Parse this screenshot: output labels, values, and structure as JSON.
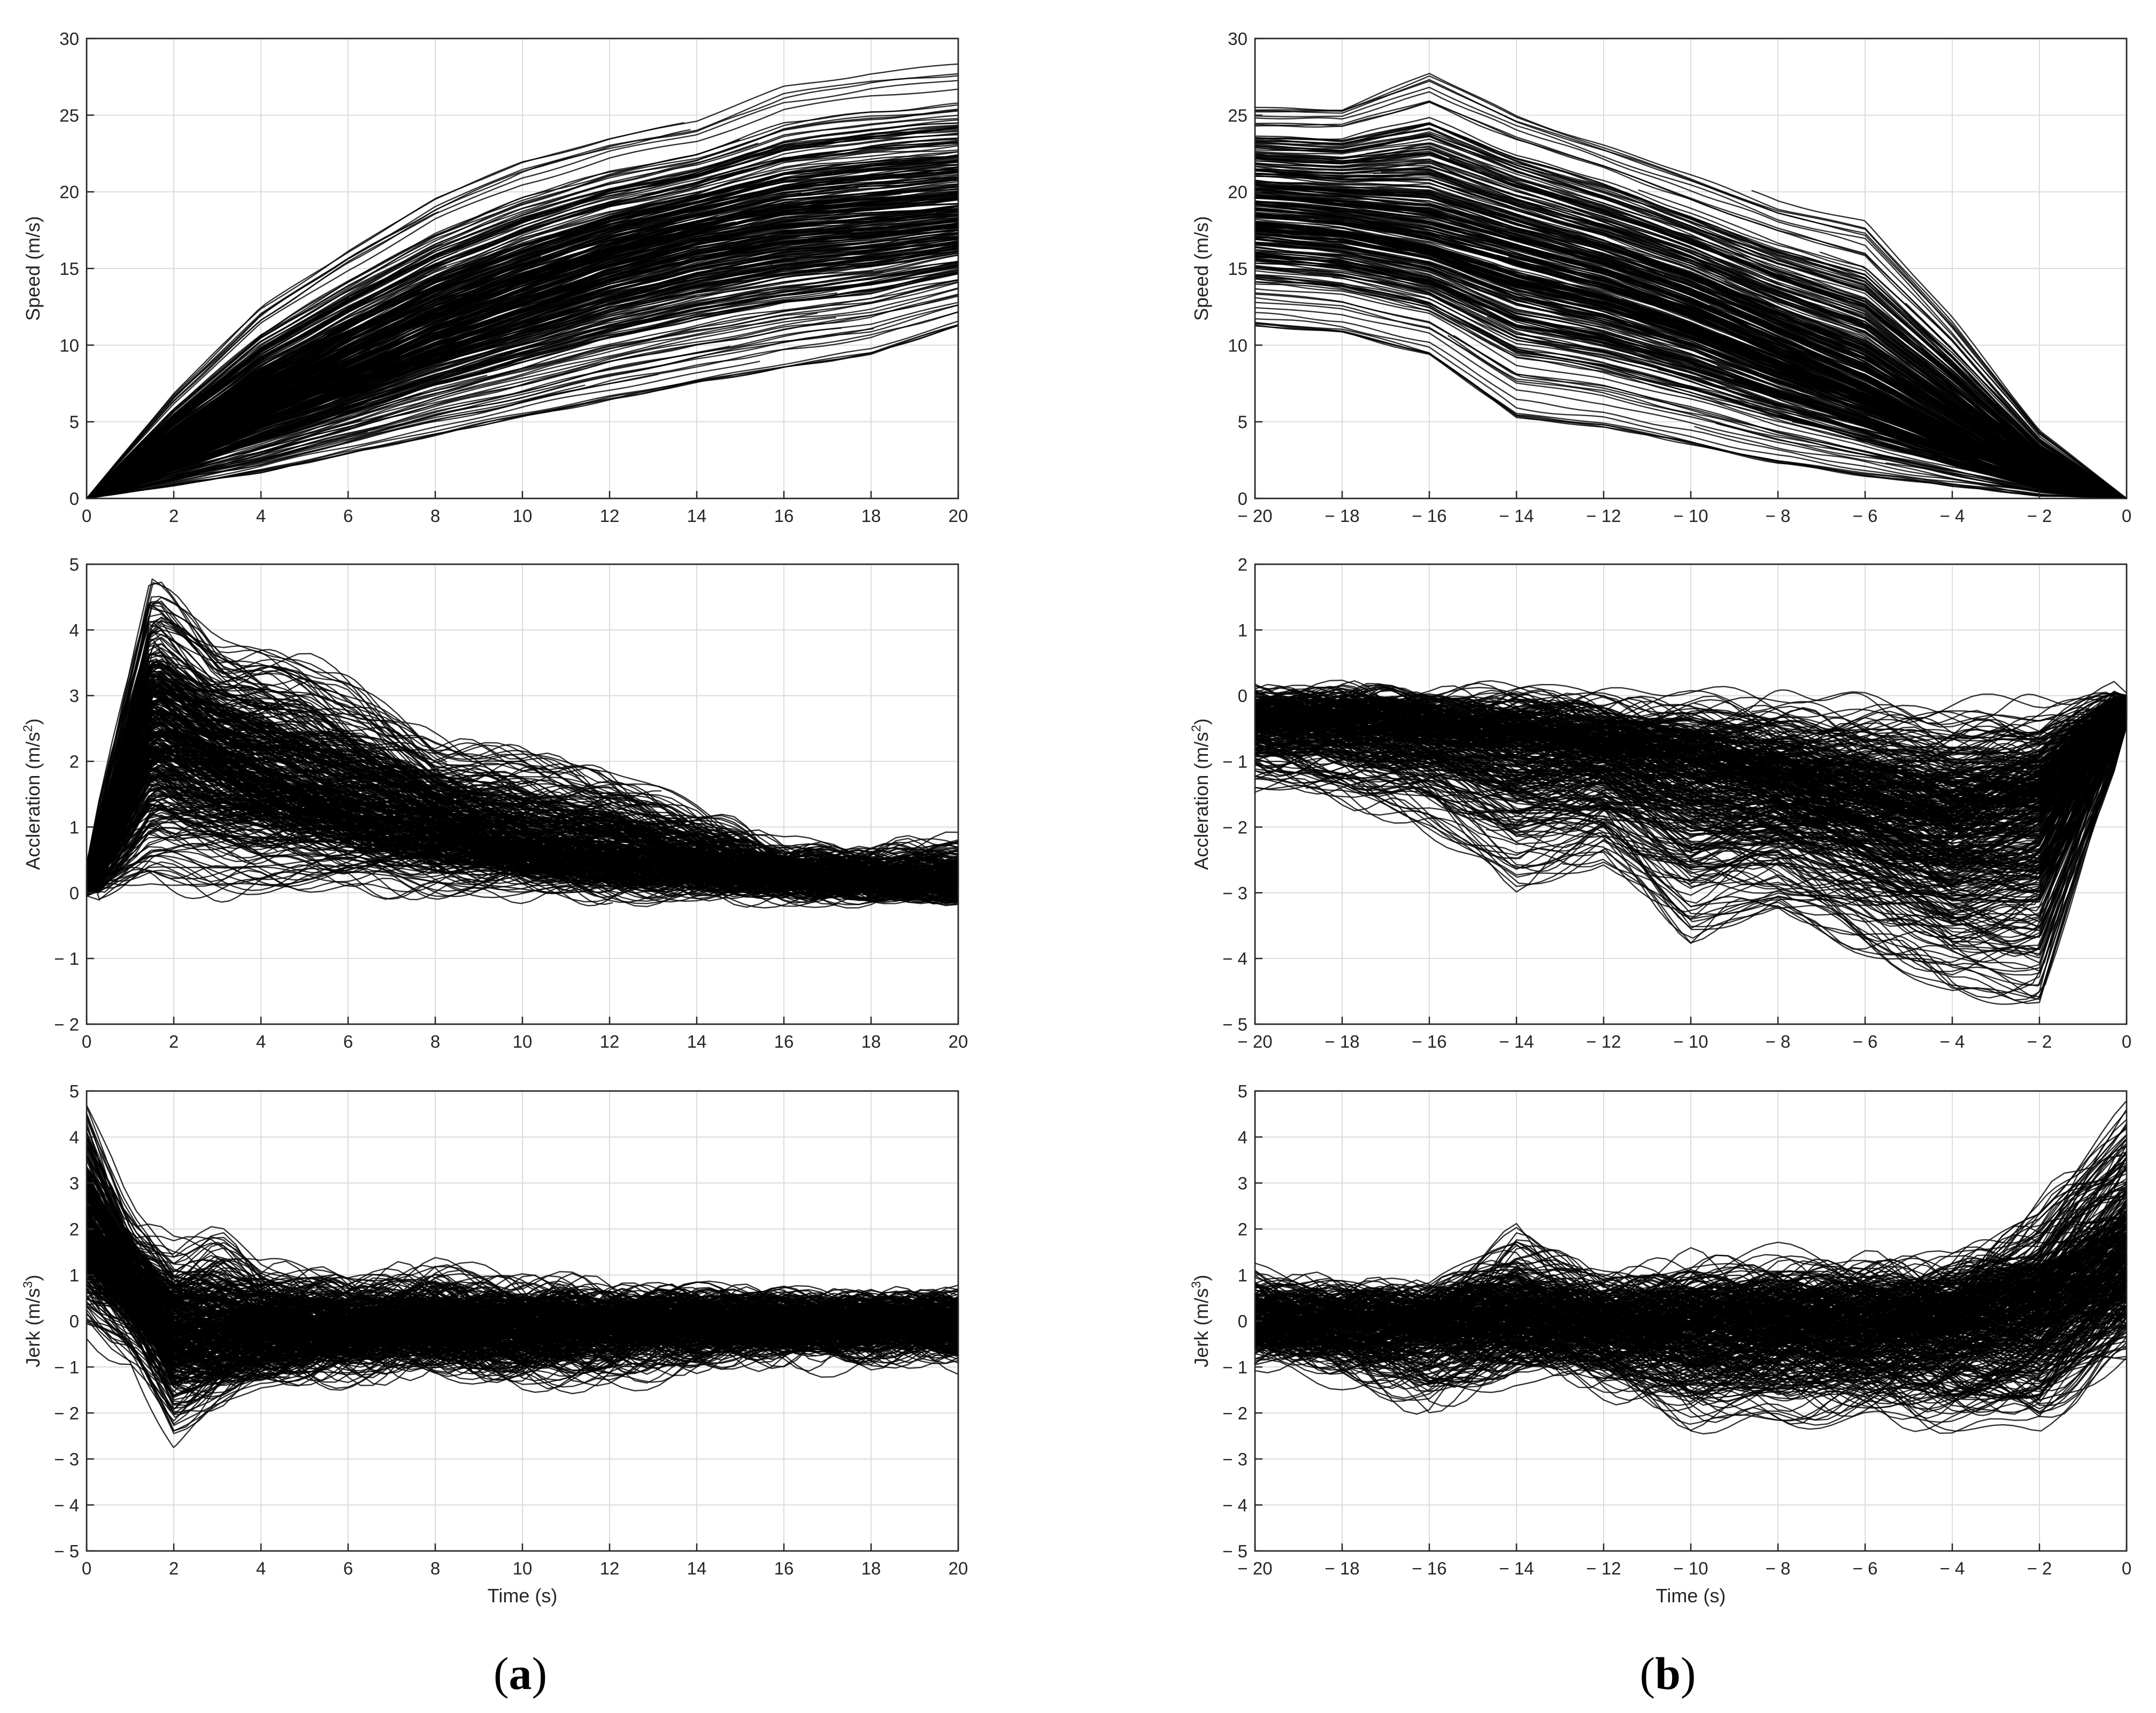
{
  "chart_data": [
    {
      "id": "a-speed",
      "type": "line",
      "panel": "a",
      "title": "",
      "xlabel": "",
      "ylabel": "Speed (m/s)",
      "xlim": [
        0,
        20
      ],
      "ylim": [
        0,
        30
      ],
      "xticks": [
        0,
        2,
        4,
        6,
        8,
        10,
        12,
        14,
        16,
        18,
        20
      ],
      "xtick_labels": [
        "0",
        "2",
        "4",
        "6",
        "8",
        "10",
        "12",
        "14",
        "16",
        "18",
        "20"
      ],
      "yticks": [
        0,
        5,
        10,
        15,
        20,
        25,
        30
      ],
      "ytick_labels": [
        "0",
        "5",
        "10",
        "15",
        "20",
        "25",
        "30"
      ],
      "grid": true,
      "series_count": 400,
      "series_color": "#000000",
      "envelope": {
        "x": [
          0,
          2,
          4,
          6,
          8,
          10,
          12,
          14,
          16,
          18,
          20
        ],
        "upper": [
          0,
          7.5,
          13.5,
          17.5,
          21,
          23.5,
          25,
          26,
          28.5,
          29.5,
          30
        ],
        "median": [
          0,
          3,
          6,
          8.5,
          11,
          13,
          15,
          16.5,
          17.5,
          18,
          18.5
        ],
        "lower": [
          0,
          0.5,
          1,
          2,
          3,
          4,
          5,
          6,
          7,
          8,
          10
        ]
      }
    },
    {
      "id": "a-accel",
      "type": "line",
      "panel": "a",
      "title": "",
      "xlabel": "",
      "ylabel": "Accleration (m/s2)",
      "ylabel_main": "Accleration (m/s",
      "ylabel_sup": "2",
      "ylabel_end": ")",
      "xlim": [
        0,
        20
      ],
      "ylim": [
        -2,
        5
      ],
      "xticks": [
        0,
        2,
        4,
        6,
        8,
        10,
        12,
        14,
        16,
        18,
        20
      ],
      "xtick_labels": [
        "0",
        "2",
        "4",
        "6",
        "8",
        "10",
        "12",
        "14",
        "16",
        "18",
        "20"
      ],
      "yticks": [
        -2,
        -1,
        0,
        1,
        2,
        3,
        4,
        5
      ],
      "ytick_labels": [
        "− 2",
        "− 1",
        "0",
        "1",
        "2",
        "3",
        "4",
        "5"
      ],
      "grid": true,
      "series_count": 400,
      "series_color": "#000000",
      "envelope": {
        "x": [
          0,
          1.5,
          3,
          5,
          8,
          10,
          12,
          14,
          16,
          18,
          20
        ],
        "upper": [
          0.5,
          5,
          4,
          3.8,
          2.4,
          2.2,
          2,
          1.4,
          0.7,
          0.6,
          0.8
        ],
        "median": [
          0,
          2.5,
          2,
          1.5,
          1,
          0.7,
          0.5,
          0.35,
          0.25,
          0.2,
          0.15
        ],
        "lower": [
          0,
          -0.2,
          -0.2,
          0,
          0,
          0,
          0,
          0,
          0,
          0,
          0
        ]
      }
    },
    {
      "id": "a-jerk",
      "type": "line",
      "panel": "a",
      "title": "",
      "xlabel": "Time (s)",
      "ylabel": "Jerk (m/s3)",
      "ylabel_main": "Jerk (m/s",
      "ylabel_sup": "3",
      "ylabel_end": ")",
      "xlim": [
        0,
        20
      ],
      "ylim": [
        -5,
        5
      ],
      "xticks": [
        0,
        2,
        4,
        6,
        8,
        10,
        12,
        14,
        16,
        18,
        20
      ],
      "xtick_labels": [
        "0",
        "2",
        "4",
        "6",
        "8",
        "10",
        "12",
        "14",
        "16",
        "18",
        "20"
      ],
      "yticks": [
        -5,
        -4,
        -3,
        -2,
        -1,
        0,
        1,
        2,
        3,
        4,
        5
      ],
      "ytick_labels": [
        "− 5",
        "− 4",
        "− 3",
        "− 2",
        "− 1",
        "0",
        "1",
        "2",
        "3",
        "4",
        "5"
      ],
      "grid": true,
      "series_count": 400,
      "series_color": "#000000",
      "envelope": {
        "x": [
          0,
          1,
          2,
          3,
          4,
          6,
          8,
          10,
          12,
          14,
          16,
          18,
          20
        ],
        "upper": [
          5,
          2.2,
          1.6,
          2,
          1.2,
          0.8,
          1.1,
          0.7,
          0.6,
          0.4,
          0.3,
          0.3,
          0.3
        ],
        "median": [
          2,
          0.8,
          -0.2,
          -0.3,
          -0.2,
          -0.15,
          -0.1,
          -0.1,
          -0.05,
          0,
          0,
          0,
          0
        ],
        "lower": [
          -0.5,
          -0.8,
          -2.7,
          -2,
          -1.5,
          -1.2,
          -1,
          -1.5,
          -1.3,
          -1,
          -0.8,
          -0.8,
          -0.8
        ]
      }
    },
    {
      "id": "b-speed",
      "type": "line",
      "panel": "b",
      "title": "",
      "xlabel": "",
      "ylabel": "Speed (m/s)",
      "xlim": [
        -20,
        0
      ],
      "ylim": [
        0,
        30
      ],
      "xticks": [
        -20,
        -18,
        -16,
        -14,
        -12,
        -10,
        -8,
        -6,
        -4,
        -2,
        0
      ],
      "xtick_labels": [
        "− 20",
        "− 18",
        "− 16",
        "− 14",
        "− 12",
        "− 10",
        "− 8",
        "− 6",
        "− 4",
        "− 2",
        "0"
      ],
      "yticks": [
        0,
        5,
        10,
        15,
        20,
        25,
        30
      ],
      "ytick_labels": [
        "0",
        "5",
        "10",
        "15",
        "20",
        "25",
        "30"
      ],
      "grid": true,
      "series_count": 400,
      "series_color": "#000000",
      "envelope": {
        "x": [
          -20,
          -18,
          -16,
          -14,
          -12,
          -10,
          -8,
          -6,
          -4,
          -2,
          0
        ],
        "upper": [
          27,
          27,
          30,
          27,
          25,
          23,
          21,
          20,
          13,
          5,
          0
        ],
        "median": [
          19,
          18.5,
          17.5,
          16,
          14.5,
          12.5,
          10,
          7.5,
          4.5,
          1.5,
          0
        ],
        "lower": [
          10,
          9.5,
          8,
          3.5,
          3,
          2,
          1,
          0.5,
          0.2,
          0,
          0
        ]
      }
    },
    {
      "id": "b-accel",
      "type": "line",
      "panel": "b",
      "title": "",
      "xlabel": "",
      "ylabel": "Accleration (m/s2)",
      "ylabel_main": "Accleration (m/s",
      "ylabel_sup": "2",
      "ylabel_end": ")",
      "xlim": [
        -20,
        0
      ],
      "ylim": [
        -5,
        2
      ],
      "xticks": [
        -20,
        -18,
        -16,
        -14,
        -12,
        -10,
        -8,
        -6,
        -4,
        -2,
        0
      ],
      "xtick_labels": [
        "− 20",
        "− 18",
        "− 16",
        "− 14",
        "− 12",
        "− 10",
        "− 8",
        "− 6",
        "− 4",
        "− 2",
        "0"
      ],
      "yticks": [
        -5,
        -4,
        -3,
        -2,
        -1,
        0,
        1,
        2
      ],
      "ytick_labels": [
        "− 5",
        "− 4",
        "− 3",
        "− 2",
        "− 1",
        "0",
        "1",
        "2"
      ],
      "grid": true,
      "series_count": 400,
      "series_color": "#000000",
      "envelope": {
        "x": [
          -20,
          -18,
          -16,
          -14,
          -12,
          -10,
          -8,
          -6,
          -4,
          -2,
          0
        ],
        "upper": [
          0.1,
          0.2,
          0.1,
          0.1,
          0.1,
          0.1,
          0.1,
          0.1,
          0.1,
          0,
          0
        ],
        "median": [
          -0.3,
          -0.35,
          -0.45,
          -0.6,
          -0.8,
          -1,
          -1.3,
          -1.6,
          -1.9,
          -1.6,
          -0.1
        ],
        "lower": [
          -1.5,
          -1.6,
          -2.2,
          -3.1,
          -2.6,
          -4,
          -3.5,
          -4.1,
          -4.8,
          -5,
          -0.5
        ]
      }
    },
    {
      "id": "b-jerk",
      "type": "line",
      "panel": "b",
      "title": "",
      "xlabel": "Time (s)",
      "ylabel": "Jerk (m/s3)",
      "ylabel_main": "Jerk (m/s",
      "ylabel_sup": "3",
      "ylabel_end": ")",
      "xlim": [
        -20,
        0
      ],
      "ylim": [
        -5,
        5
      ],
      "xticks": [
        -20,
        -18,
        -16,
        -14,
        -12,
        -10,
        -8,
        -6,
        -4,
        -2,
        0
      ],
      "xtick_labels": [
        "− 20",
        "− 18",
        "− 16",
        "− 14",
        "− 12",
        "− 10",
        "− 8",
        "− 6",
        "− 4",
        "− 2",
        "0"
      ],
      "yticks": [
        -5,
        -4,
        -3,
        -2,
        -1,
        0,
        1,
        2,
        3,
        4,
        5
      ],
      "ytick_labels": [
        "− 5",
        "− 4",
        "− 3",
        "− 2",
        "− 1",
        "0",
        "1",
        "2",
        "3",
        "4",
        "5"
      ],
      "grid": true,
      "series_count": 400,
      "series_color": "#000000",
      "envelope": {
        "x": [
          -20,
          -18,
          -16,
          -14,
          -12,
          -10,
          -8,
          -6,
          -4,
          -2,
          0
        ],
        "upper": [
          1,
          0.6,
          0.6,
          2,
          0.8,
          1.3,
          1.4,
          1.2,
          1.3,
          2.5,
          5
        ],
        "median": [
          0,
          -0.05,
          -0.05,
          -0.05,
          -0.05,
          -0.1,
          -0.1,
          -0.1,
          0,
          0.3,
          1.2
        ],
        "lower": [
          -0.8,
          -1.2,
          -1.9,
          -1,
          -1.5,
          -2.3,
          -2.2,
          -2.2,
          -2.5,
          -2.6,
          -0.8
        ]
      }
    }
  ],
  "panel_labels": {
    "a": {
      "open": "(",
      "letter": "a",
      "close": ")"
    },
    "b": {
      "open": "(",
      "letter": "b",
      "close": ")"
    }
  }
}
